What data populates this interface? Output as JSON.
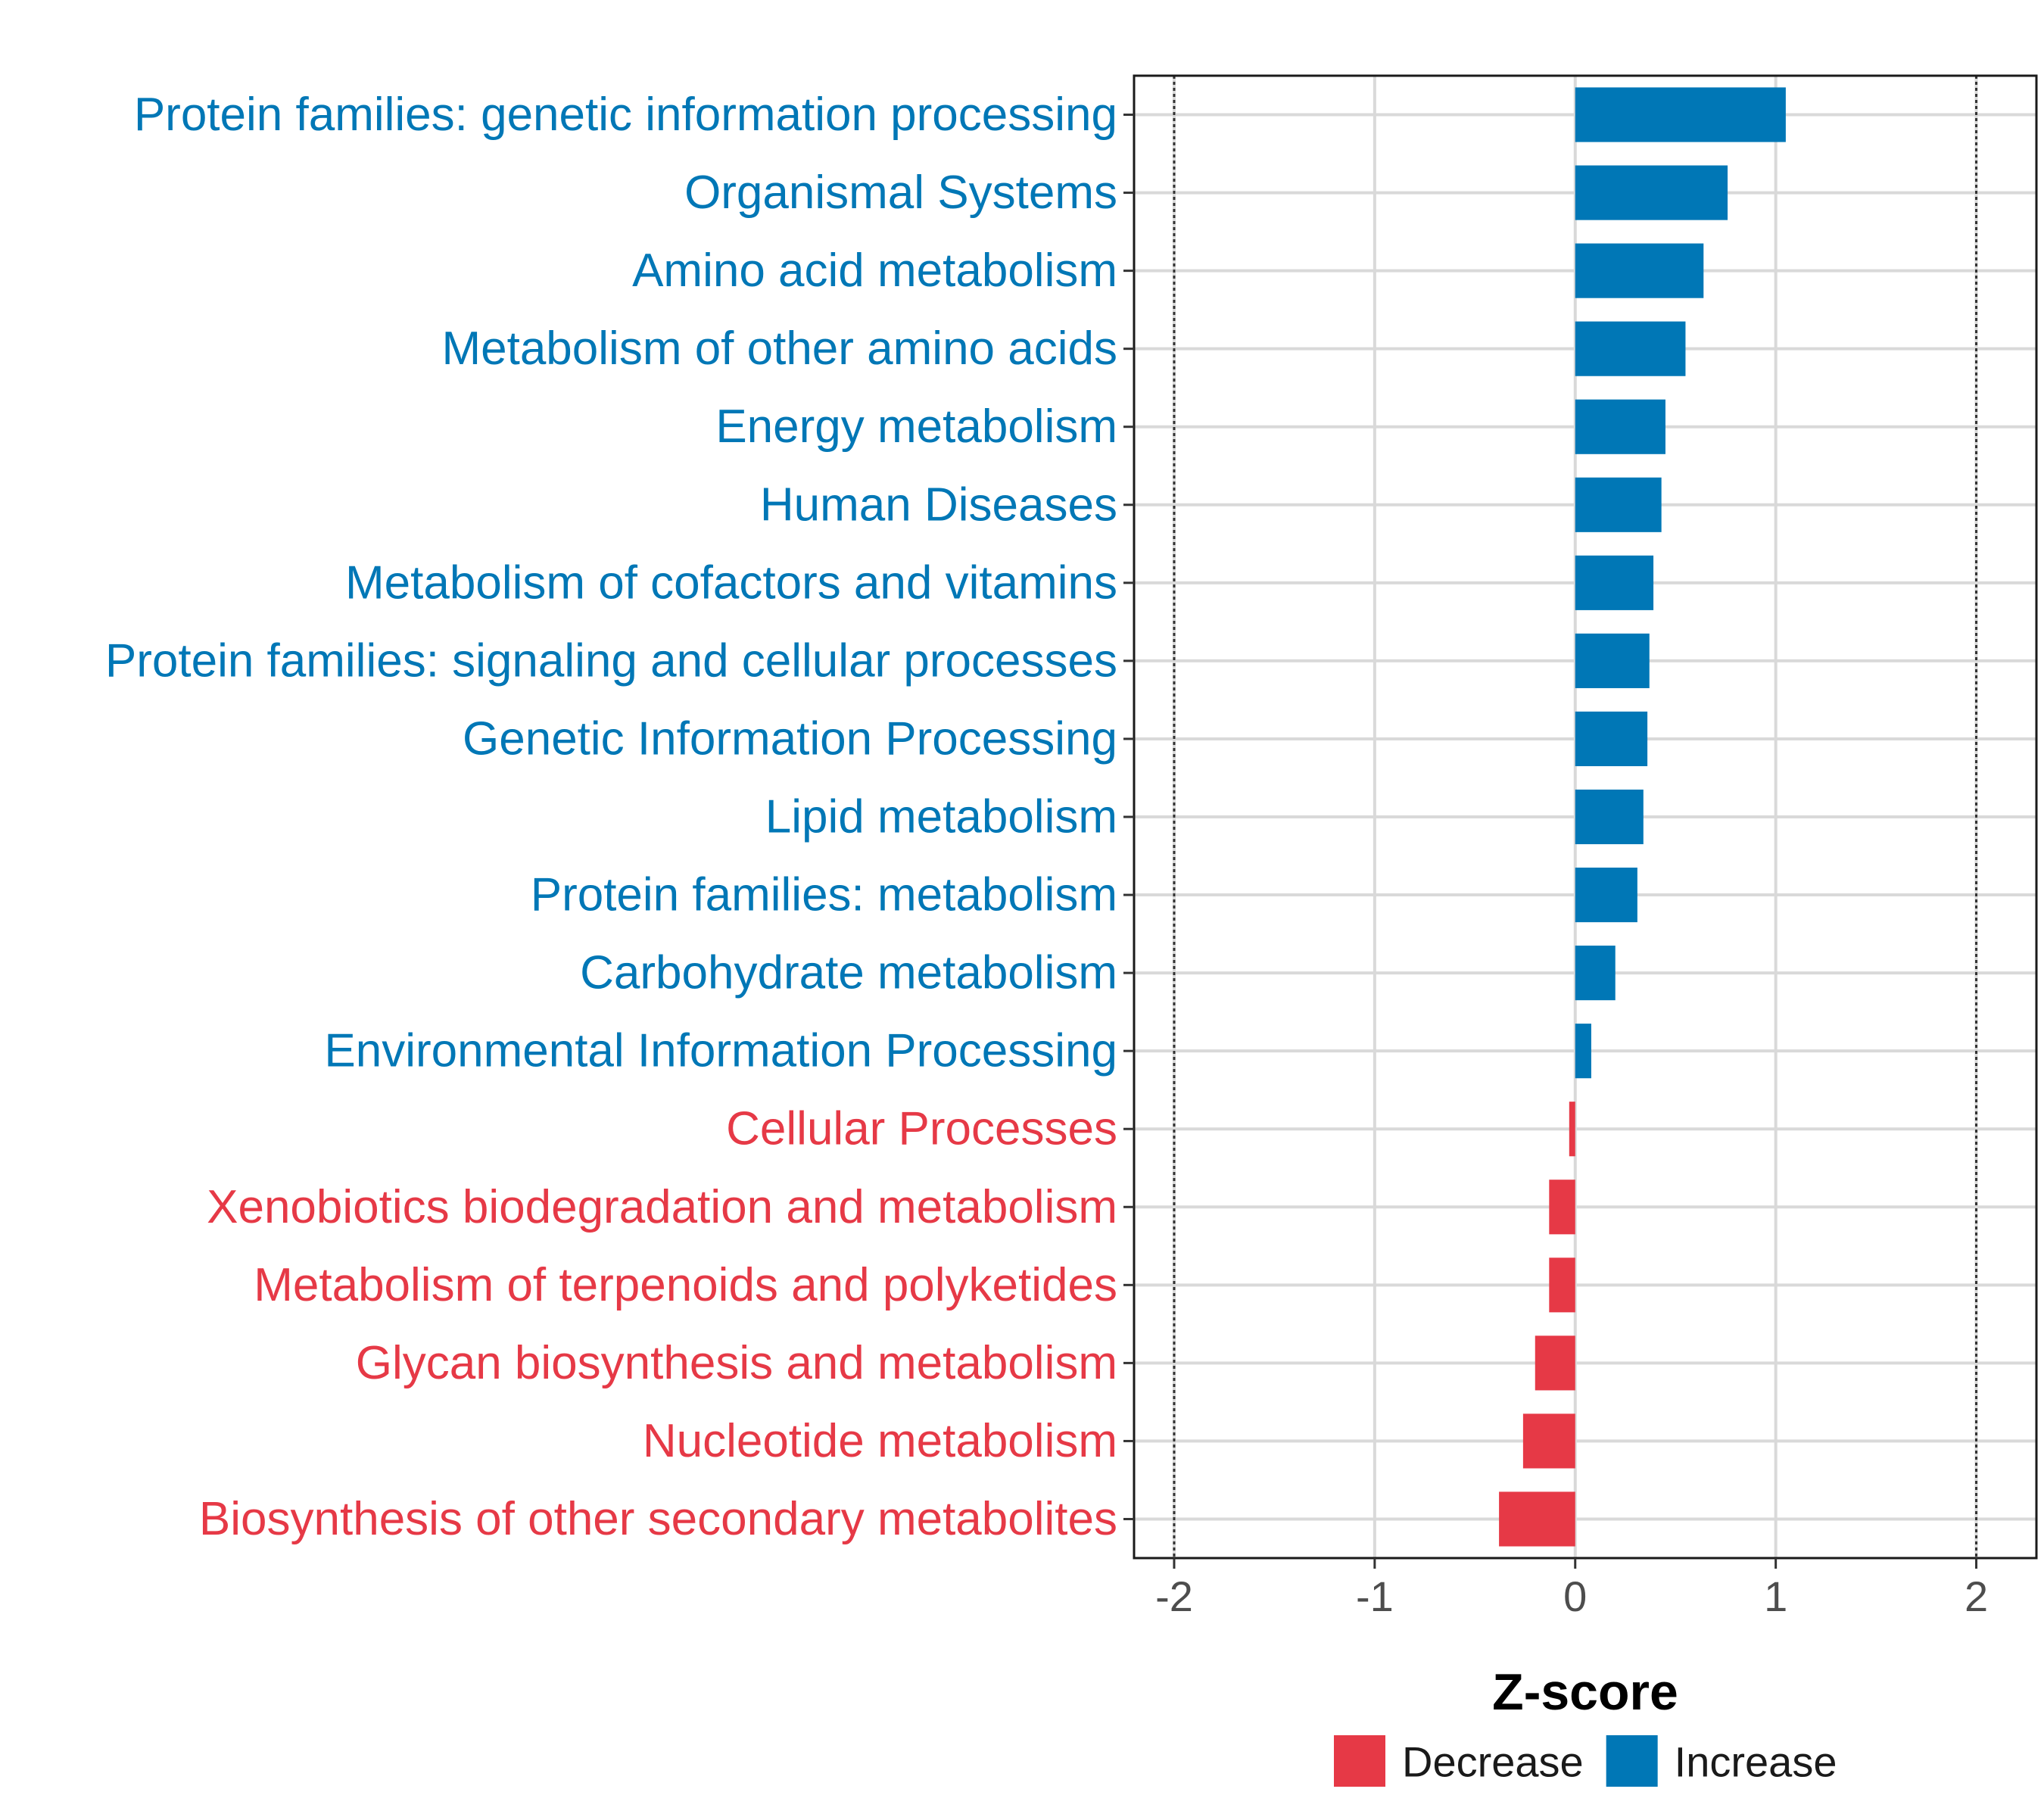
{
  "chart_data": {
    "type": "bar",
    "orientation": "horizontal",
    "title": "",
    "xlabel": "Z-score",
    "ylabel": "",
    "xlim": [
      -2.2,
      2.3
    ],
    "xticks": [
      -2,
      -1,
      0,
      1,
      2
    ],
    "xtick_labels": [
      "-2",
      "-1",
      "0",
      "1",
      "2"
    ],
    "reference_lines": [
      -2,
      2
    ],
    "grid": true,
    "categories": [
      "Protein families: genetic information processing",
      "Organismal Systems",
      "Amino acid metabolism",
      "Metabolism of other amino acids",
      "Energy metabolism",
      "Human Diseases",
      "Metabolism of cofactors and vitamins",
      "Protein families: signaling and cellular processes",
      "Genetic Information Processing",
      "Lipid metabolism",
      "Protein families: metabolism",
      "Carbohydrate metabolism",
      "Environmental Information Processing",
      "Cellular Processes",
      "Xenobiotics biodegradation and metabolism",
      "Metabolism of terpenoids and polyketides",
      "Glycan biosynthesis and metabolism",
      "Nucleotide metabolism",
      "Biosynthesis of other secondary metabolites"
    ],
    "values": [
      1.05,
      0.76,
      0.64,
      0.55,
      0.45,
      0.43,
      0.39,
      0.37,
      0.36,
      0.34,
      0.31,
      0.2,
      0.08,
      -0.03,
      -0.13,
      -0.13,
      -0.2,
      -0.26,
      -0.38
    ],
    "groups": [
      "Increase",
      "Increase",
      "Increase",
      "Increase",
      "Increase",
      "Increase",
      "Increase",
      "Increase",
      "Increase",
      "Increase",
      "Increase",
      "Increase",
      "Increase",
      "Decrease",
      "Decrease",
      "Decrease",
      "Decrease",
      "Decrease",
      "Decrease"
    ],
    "legend": {
      "position": "bottom",
      "entries": [
        {
          "label": "Decrease",
          "color": "#e63946"
        },
        {
          "label": "Increase",
          "color": "#0077b6"
        }
      ]
    }
  }
}
